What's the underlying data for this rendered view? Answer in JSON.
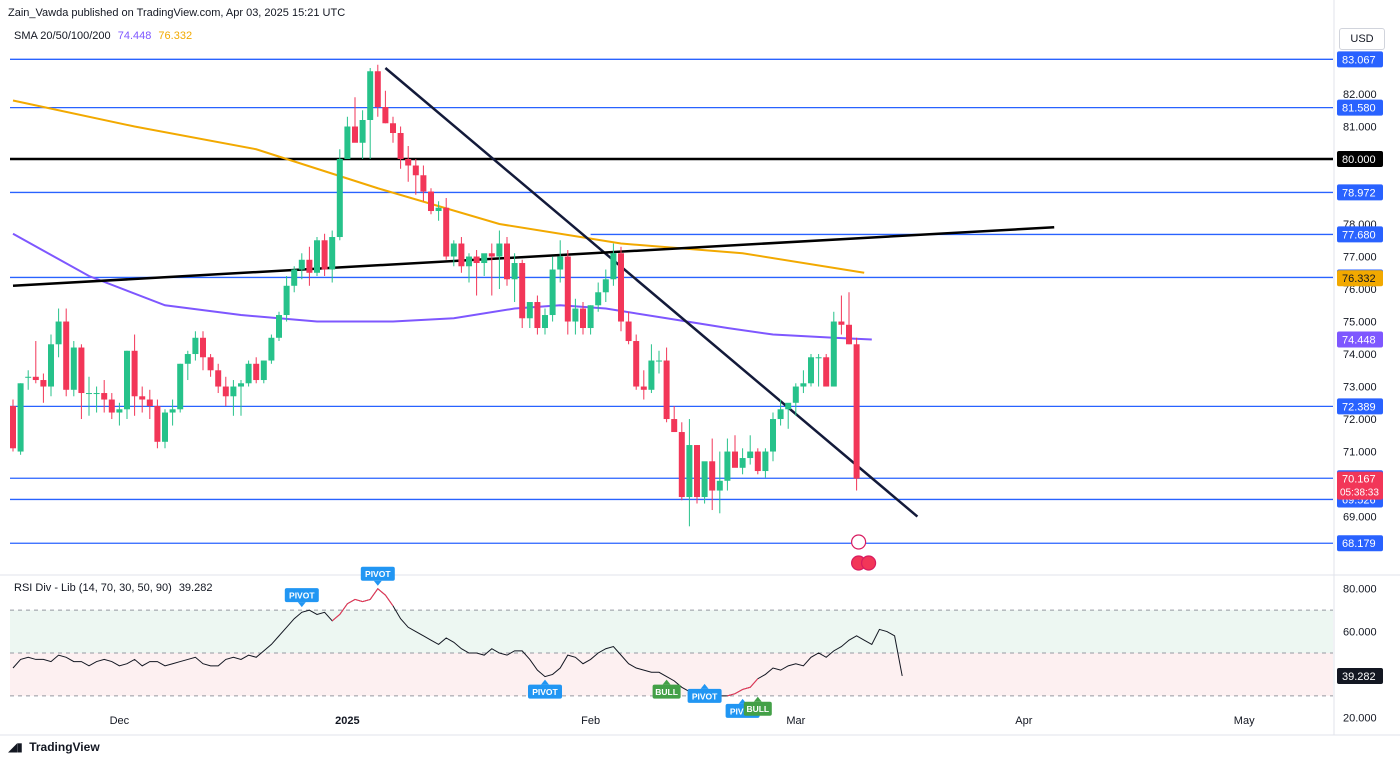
{
  "header": {
    "published": "Zain_Vawda published on TradingView.com, Apr 03, 2025 15:21 UTC",
    "currency": "USD",
    "brand": "TradingView"
  },
  "sma_legend": {
    "label": "SMA 20/50/100/200",
    "value1": "74.448",
    "value2": "76.332",
    "color1": "#7e57ff",
    "color2": "#f2a900"
  },
  "rsi_legend": {
    "label": "RSI Div - Lib (14, 70, 30, 50, 90)",
    "value": "39.282"
  },
  "colors": {
    "up": "#26c28a",
    "down": "#f23658",
    "hline": "#2962ff",
    "trend": "#131a3a"
  },
  "chart_data": [
    {
      "type": "candlestick",
      "x_ticks": [
        "Dec",
        "2025",
        "Feb",
        "Mar",
        "Apr",
        "May"
      ],
      "y_ticks": [
        "83.067",
        "82.000",
        "81.580",
        "81.000",
        "80.000",
        "78.972",
        "78.000",
        "77.680",
        "77.000",
        "76.356",
        "76.332",
        "76.000",
        "75.000",
        "74.448",
        "74.000",
        "73.000",
        "72.389",
        "72.000",
        "71.000",
        "70.178",
        "70.167",
        "69.526",
        "69.000",
        "68.179"
      ],
      "ylim": [
        68.2,
        83.2
      ],
      "horizontal_levels": [
        {
          "value": 83.067,
          "label": "83.067",
          "color": "#2962ff"
        },
        {
          "value": 81.58,
          "label": "81.580",
          "color": "#2962ff"
        },
        {
          "value": 80.0,
          "label": "80.000",
          "color": "#000000"
        },
        {
          "value": 78.972,
          "label": "78.972",
          "color": "#2962ff"
        },
        {
          "value": 76.356,
          "label": "76.356",
          "color": "#2962ff"
        },
        {
          "value": 72.389,
          "label": "72.389",
          "color": "#2962ff"
        },
        {
          "value": 70.178,
          "label": "70.178",
          "color": "#2962ff"
        },
        {
          "value": 69.526,
          "label": "69.526",
          "color": "#2962ff"
        },
        {
          "value": 68.179,
          "label": "68.179",
          "color": "#2962ff"
        }
      ],
      "short_levels": [
        {
          "value": 77.68,
          "label": "77.680",
          "color": "#2962ff"
        }
      ],
      "price_label": {
        "value": 70.167,
        "label": "70.167",
        "countdown": "05:38:33"
      },
      "sma_labels": [
        {
          "value": 74.448,
          "label": "74.448",
          "color": "#7e57ff"
        },
        {
          "value": 76.332,
          "label": "76.332",
          "color": "#f2a900"
        }
      ],
      "candles": [
        {
          "o": 72.4,
          "h": 72.6,
          "l": 71.0,
          "c": 71.1
        },
        {
          "o": 71.0,
          "h": 73.1,
          "l": 70.9,
          "c": 73.1
        },
        {
          "o": 73.3,
          "h": 73.5,
          "l": 72.9,
          "c": 73.3
        },
        {
          "o": 73.3,
          "h": 74.4,
          "l": 73.1,
          "c": 73.2
        },
        {
          "o": 73.2,
          "h": 73.4,
          "l": 72.5,
          "c": 73.0
        },
        {
          "o": 73.0,
          "h": 74.6,
          "l": 72.7,
          "c": 74.3
        },
        {
          "o": 74.3,
          "h": 75.4,
          "l": 73.9,
          "c": 75.0
        },
        {
          "o": 75.0,
          "h": 75.4,
          "l": 72.7,
          "c": 72.9
        },
        {
          "o": 72.9,
          "h": 74.4,
          "l": 72.7,
          "c": 74.2
        },
        {
          "o": 74.2,
          "h": 74.3,
          "l": 72.0,
          "c": 72.8
        },
        {
          "o": 72.8,
          "h": 73.3,
          "l": 72.1,
          "c": 72.8
        },
        {
          "o": 72.8,
          "h": 73.0,
          "l": 72.2,
          "c": 72.8
        },
        {
          "o": 72.8,
          "h": 73.2,
          "l": 72.2,
          "c": 72.6
        },
        {
          "o": 72.6,
          "h": 72.8,
          "l": 72.0,
          "c": 72.2
        },
        {
          "o": 72.2,
          "h": 72.5,
          "l": 71.8,
          "c": 72.3
        },
        {
          "o": 72.3,
          "h": 74.1,
          "l": 72.0,
          "c": 74.1
        },
        {
          "o": 74.1,
          "h": 74.6,
          "l": 72.1,
          "c": 72.7
        },
        {
          "o": 72.7,
          "h": 73.0,
          "l": 72.2,
          "c": 72.6
        },
        {
          "o": 72.6,
          "h": 72.9,
          "l": 72.0,
          "c": 72.4
        },
        {
          "o": 72.4,
          "h": 72.6,
          "l": 71.1,
          "c": 71.3
        },
        {
          "o": 71.3,
          "h": 72.3,
          "l": 71.1,
          "c": 72.2
        },
        {
          "o": 72.2,
          "h": 72.6,
          "l": 71.8,
          "c": 72.3
        },
        {
          "o": 72.3,
          "h": 73.7,
          "l": 72.2,
          "c": 73.7
        },
        {
          "o": 73.7,
          "h": 74.1,
          "l": 73.2,
          "c": 74.0
        },
        {
          "o": 74.0,
          "h": 74.7,
          "l": 73.8,
          "c": 74.5
        },
        {
          "o": 74.5,
          "h": 74.7,
          "l": 73.5,
          "c": 73.9
        },
        {
          "o": 73.9,
          "h": 74.0,
          "l": 73.3,
          "c": 73.5
        },
        {
          "o": 73.5,
          "h": 73.7,
          "l": 72.8,
          "c": 73.0
        },
        {
          "o": 73.0,
          "h": 73.3,
          "l": 72.4,
          "c": 72.7
        },
        {
          "o": 72.7,
          "h": 73.2,
          "l": 72.1,
          "c": 73.0
        },
        {
          "o": 73.0,
          "h": 73.2,
          "l": 72.1,
          "c": 73.1
        },
        {
          "o": 73.1,
          "h": 73.8,
          "l": 73.0,
          "c": 73.7
        },
        {
          "o": 73.7,
          "h": 73.9,
          "l": 73.1,
          "c": 73.2
        },
        {
          "o": 73.2,
          "h": 73.8,
          "l": 73.1,
          "c": 73.8
        },
        {
          "o": 73.8,
          "h": 74.6,
          "l": 73.7,
          "c": 74.5
        },
        {
          "o": 74.5,
          "h": 75.3,
          "l": 74.4,
          "c": 75.2
        },
        {
          "o": 75.2,
          "h": 76.4,
          "l": 75.0,
          "c": 76.1
        },
        {
          "o": 76.1,
          "h": 76.7,
          "l": 75.9,
          "c": 76.6
        },
        {
          "o": 76.6,
          "h": 77.1,
          "l": 76.3,
          "c": 76.9
        },
        {
          "o": 76.9,
          "h": 77.3,
          "l": 76.1,
          "c": 76.5
        },
        {
          "o": 76.5,
          "h": 77.6,
          "l": 76.4,
          "c": 77.5
        },
        {
          "o": 77.5,
          "h": 77.7,
          "l": 76.4,
          "c": 76.6
        },
        {
          "o": 76.6,
          "h": 77.8,
          "l": 76.2,
          "c": 77.6
        },
        {
          "o": 77.6,
          "h": 80.3,
          "l": 77.5,
          "c": 80.0
        },
        {
          "o": 80.0,
          "h": 81.3,
          "l": 80.0,
          "c": 81.0
        },
        {
          "o": 81.0,
          "h": 81.9,
          "l": 80.6,
          "c": 80.5
        },
        {
          "o": 80.5,
          "h": 81.5,
          "l": 80.0,
          "c": 81.2
        },
        {
          "o": 81.2,
          "h": 82.8,
          "l": 80.0,
          "c": 82.7
        },
        {
          "o": 82.7,
          "h": 82.9,
          "l": 81.3,
          "c": 81.6
        },
        {
          "o": 81.6,
          "h": 82.1,
          "l": 81.1,
          "c": 81.1
        },
        {
          "o": 81.1,
          "h": 81.3,
          "l": 80.5,
          "c": 80.8
        },
        {
          "o": 80.8,
          "h": 81.0,
          "l": 79.7,
          "c": 80.0
        },
        {
          "o": 80.0,
          "h": 80.4,
          "l": 79.3,
          "c": 79.8
        },
        {
          "o": 79.8,
          "h": 80.0,
          "l": 78.9,
          "c": 79.5
        },
        {
          "o": 79.5,
          "h": 79.8,
          "l": 78.7,
          "c": 79.0
        },
        {
          "o": 79.0,
          "h": 79.1,
          "l": 78.3,
          "c": 78.4
        },
        {
          "o": 78.4,
          "h": 78.7,
          "l": 78.1,
          "c": 78.5
        },
        {
          "o": 78.5,
          "h": 78.8,
          "l": 76.9,
          "c": 77.0
        },
        {
          "o": 77.0,
          "h": 77.5,
          "l": 76.7,
          "c": 77.4
        },
        {
          "o": 77.4,
          "h": 77.6,
          "l": 76.5,
          "c": 76.7
        },
        {
          "o": 76.7,
          "h": 77.1,
          "l": 76.2,
          "c": 77.0
        },
        {
          "o": 77.0,
          "h": 77.2,
          "l": 75.8,
          "c": 76.8
        },
        {
          "o": 76.8,
          "h": 77.0,
          "l": 76.4,
          "c": 77.1
        },
        {
          "o": 77.1,
          "h": 77.4,
          "l": 75.8,
          "c": 77.0
        },
        {
          "o": 77.0,
          "h": 77.8,
          "l": 76.0,
          "c": 77.4
        },
        {
          "o": 77.4,
          "h": 77.6,
          "l": 76.1,
          "c": 76.3
        },
        {
          "o": 76.3,
          "h": 77.1,
          "l": 75.6,
          "c": 76.8
        },
        {
          "o": 76.8,
          "h": 76.9,
          "l": 74.8,
          "c": 75.1
        },
        {
          "o": 75.1,
          "h": 75.5,
          "l": 74.8,
          "c": 75.6
        },
        {
          "o": 75.6,
          "h": 75.8,
          "l": 74.6,
          "c": 74.8
        },
        {
          "o": 74.8,
          "h": 75.4,
          "l": 74.6,
          "c": 75.2
        },
        {
          "o": 75.2,
          "h": 77.0,
          "l": 75.0,
          "c": 76.6
        },
        {
          "o": 76.6,
          "h": 77.5,
          "l": 76.2,
          "c": 77.0
        },
        {
          "o": 77.0,
          "h": 77.2,
          "l": 74.6,
          "c": 75.0
        },
        {
          "o": 75.0,
          "h": 75.7,
          "l": 74.6,
          "c": 75.4
        },
        {
          "o": 75.4,
          "h": 75.6,
          "l": 74.6,
          "c": 74.8
        },
        {
          "o": 74.8,
          "h": 75.5,
          "l": 74.6,
          "c": 75.5
        },
        {
          "o": 75.5,
          "h": 76.2,
          "l": 75.3,
          "c": 75.9
        },
        {
          "o": 75.9,
          "h": 76.6,
          "l": 75.6,
          "c": 76.3
        },
        {
          "o": 76.3,
          "h": 77.4,
          "l": 76.1,
          "c": 77.1
        },
        {
          "o": 77.1,
          "h": 77.3,
          "l": 74.7,
          "c": 75.0
        },
        {
          "o": 75.0,
          "h": 75.3,
          "l": 74.3,
          "c": 74.4
        },
        {
          "o": 74.4,
          "h": 74.6,
          "l": 72.9,
          "c": 73.0
        },
        {
          "o": 73.0,
          "h": 73.5,
          "l": 72.6,
          "c": 72.9
        },
        {
          "o": 72.9,
          "h": 74.3,
          "l": 72.8,
          "c": 73.8
        },
        {
          "o": 73.8,
          "h": 74.1,
          "l": 73.4,
          "c": 73.8
        },
        {
          "o": 73.8,
          "h": 74.2,
          "l": 71.9,
          "c": 72.0
        },
        {
          "o": 72.0,
          "h": 72.4,
          "l": 71.6,
          "c": 71.6
        },
        {
          "o": 71.6,
          "h": 71.9,
          "l": 69.5,
          "c": 69.6
        },
        {
          "o": 69.6,
          "h": 72.0,
          "l": 68.7,
          "c": 71.2
        },
        {
          "o": 71.2,
          "h": 71.2,
          "l": 69.4,
          "c": 69.6
        },
        {
          "o": 69.6,
          "h": 70.6,
          "l": 69.4,
          "c": 70.7
        },
        {
          "o": 70.7,
          "h": 71.4,
          "l": 69.2,
          "c": 69.8
        },
        {
          "o": 69.8,
          "h": 71.0,
          "l": 69.1,
          "c": 70.1
        },
        {
          "o": 70.1,
          "h": 71.4,
          "l": 69.8,
          "c": 71.0
        },
        {
          "o": 71.0,
          "h": 71.5,
          "l": 70.6,
          "c": 70.5
        },
        {
          "o": 70.5,
          "h": 71.1,
          "l": 70.3,
          "c": 70.8
        },
        {
          "o": 70.8,
          "h": 71.5,
          "l": 70.6,
          "c": 71.0
        },
        {
          "o": 71.0,
          "h": 71.1,
          "l": 70.3,
          "c": 70.4
        },
        {
          "o": 70.4,
          "h": 71.1,
          "l": 70.2,
          "c": 71.0
        },
        {
          "o": 71.0,
          "h": 72.2,
          "l": 70.7,
          "c": 72.0
        },
        {
          "o": 72.0,
          "h": 72.6,
          "l": 71.8,
          "c": 72.3
        },
        {
          "o": 72.3,
          "h": 72.4,
          "l": 71.7,
          "c": 72.5
        },
        {
          "o": 72.5,
          "h": 73.1,
          "l": 72.1,
          "c": 73.0
        },
        {
          "o": 73.0,
          "h": 73.5,
          "l": 72.8,
          "c": 73.1
        },
        {
          "o": 73.1,
          "h": 74.0,
          "l": 73.0,
          "c": 73.9
        },
        {
          "o": 73.9,
          "h": 74.0,
          "l": 73.0,
          "c": 73.9
        },
        {
          "o": 73.9,
          "h": 74.0,
          "l": 73.0,
          "c": 73.0
        },
        {
          "o": 73.0,
          "h": 75.3,
          "l": 73.0,
          "c": 75.0
        },
        {
          "o": 75.0,
          "h": 75.8,
          "l": 74.6,
          "c": 74.9
        },
        {
          "o": 74.9,
          "h": 75.9,
          "l": 74.3,
          "c": 74.3
        },
        {
          "o": 74.3,
          "h": 74.5,
          "l": 69.8,
          "c": 70.167
        }
      ],
      "sma_200_points": [
        [
          0,
          81.8
        ],
        [
          16,
          81.0
        ],
        [
          32,
          80.3
        ],
        [
          48,
          79.1
        ],
        [
          64,
          78.0
        ],
        [
          80,
          77.4
        ],
        [
          96,
          77.1
        ],
        [
          112,
          76.5
        ]
      ],
      "sma_100_points": [
        [
          0,
          77.7
        ],
        [
          10,
          76.4
        ],
        [
          20,
          75.5
        ],
        [
          30,
          75.2
        ],
        [
          40,
          75.0
        ],
        [
          50,
          75.0
        ],
        [
          58,
          75.1
        ],
        [
          66,
          75.4
        ],
        [
          72,
          75.5
        ],
        [
          78,
          75.4
        ],
        [
          86,
          75.1
        ],
        [
          94,
          74.8
        ],
        [
          100,
          74.6
        ],
        [
          108,
          74.5
        ],
        [
          113,
          74.448
        ]
      ],
      "trendlines": [
        {
          "from": [
            49,
            82.8
          ],
          "to": [
            119,
            69.0
          ],
          "color": "#131a3a"
        },
        {
          "from": [
            0,
            76.1
          ],
          "to": [
            137,
            77.9
          ],
          "color": "#000000"
        }
      ]
    },
    {
      "type": "line",
      "title": "RSI Div - Lib (14, 70, 30, 50, 90)",
      "y_ticks": [
        "80.000",
        "60.000",
        "39.282",
        "20.000"
      ],
      "ylim": [
        15,
        85
      ],
      "bands": [
        70,
        50,
        30
      ],
      "values": [
        43,
        47,
        48,
        47,
        47,
        46,
        49,
        48,
        46,
        46,
        44,
        46,
        47,
        46,
        44,
        45,
        47,
        44,
        46,
        46,
        44,
        45,
        46,
        47,
        48,
        45,
        44,
        44,
        47,
        48,
        47,
        49,
        48,
        51,
        54,
        58,
        62,
        66,
        69,
        70,
        68,
        69,
        65,
        68,
        73,
        75,
        74,
        75,
        80,
        77,
        72,
        66,
        62,
        60,
        58,
        56,
        54,
        57,
        55,
        52,
        50,
        50,
        49,
        52,
        50,
        49,
        51,
        51,
        47,
        42,
        39,
        40,
        43,
        49,
        48,
        45,
        47,
        50,
        52,
        53,
        49,
        45,
        43,
        42,
        41,
        41,
        39,
        37,
        34,
        32,
        30,
        33,
        31,
        30,
        30,
        31,
        33,
        34,
        38,
        40,
        43,
        42,
        44,
        45,
        44,
        48,
        50,
        48,
        51,
        53,
        56,
        58,
        56,
        54,
        61,
        60,
        58,
        39.282
      ],
      "markers": [
        {
          "i": 38,
          "v": 70,
          "label": "PIVOT",
          "kind": "pivot",
          "pos": "above"
        },
        {
          "i": 48,
          "v": 80,
          "label": "PIVOT",
          "kind": "pivot",
          "pos": "above"
        },
        {
          "i": 70,
          "v": 39,
          "label": "PIVOT",
          "kind": "pivot",
          "pos": "below"
        },
        {
          "i": 86,
          "v": 39,
          "label": "BULL",
          "kind": "bull",
          "pos": "below"
        },
        {
          "i": 91,
          "v": 37,
          "label": "PIVOT",
          "kind": "pivot",
          "pos": "below"
        },
        {
          "i": 96,
          "v": 30,
          "label": "PIVOT",
          "kind": "pivot",
          "pos": "below"
        },
        {
          "i": 98,
          "v": 31,
          "label": "BULL",
          "kind": "bull",
          "pos": "below"
        }
      ]
    }
  ]
}
